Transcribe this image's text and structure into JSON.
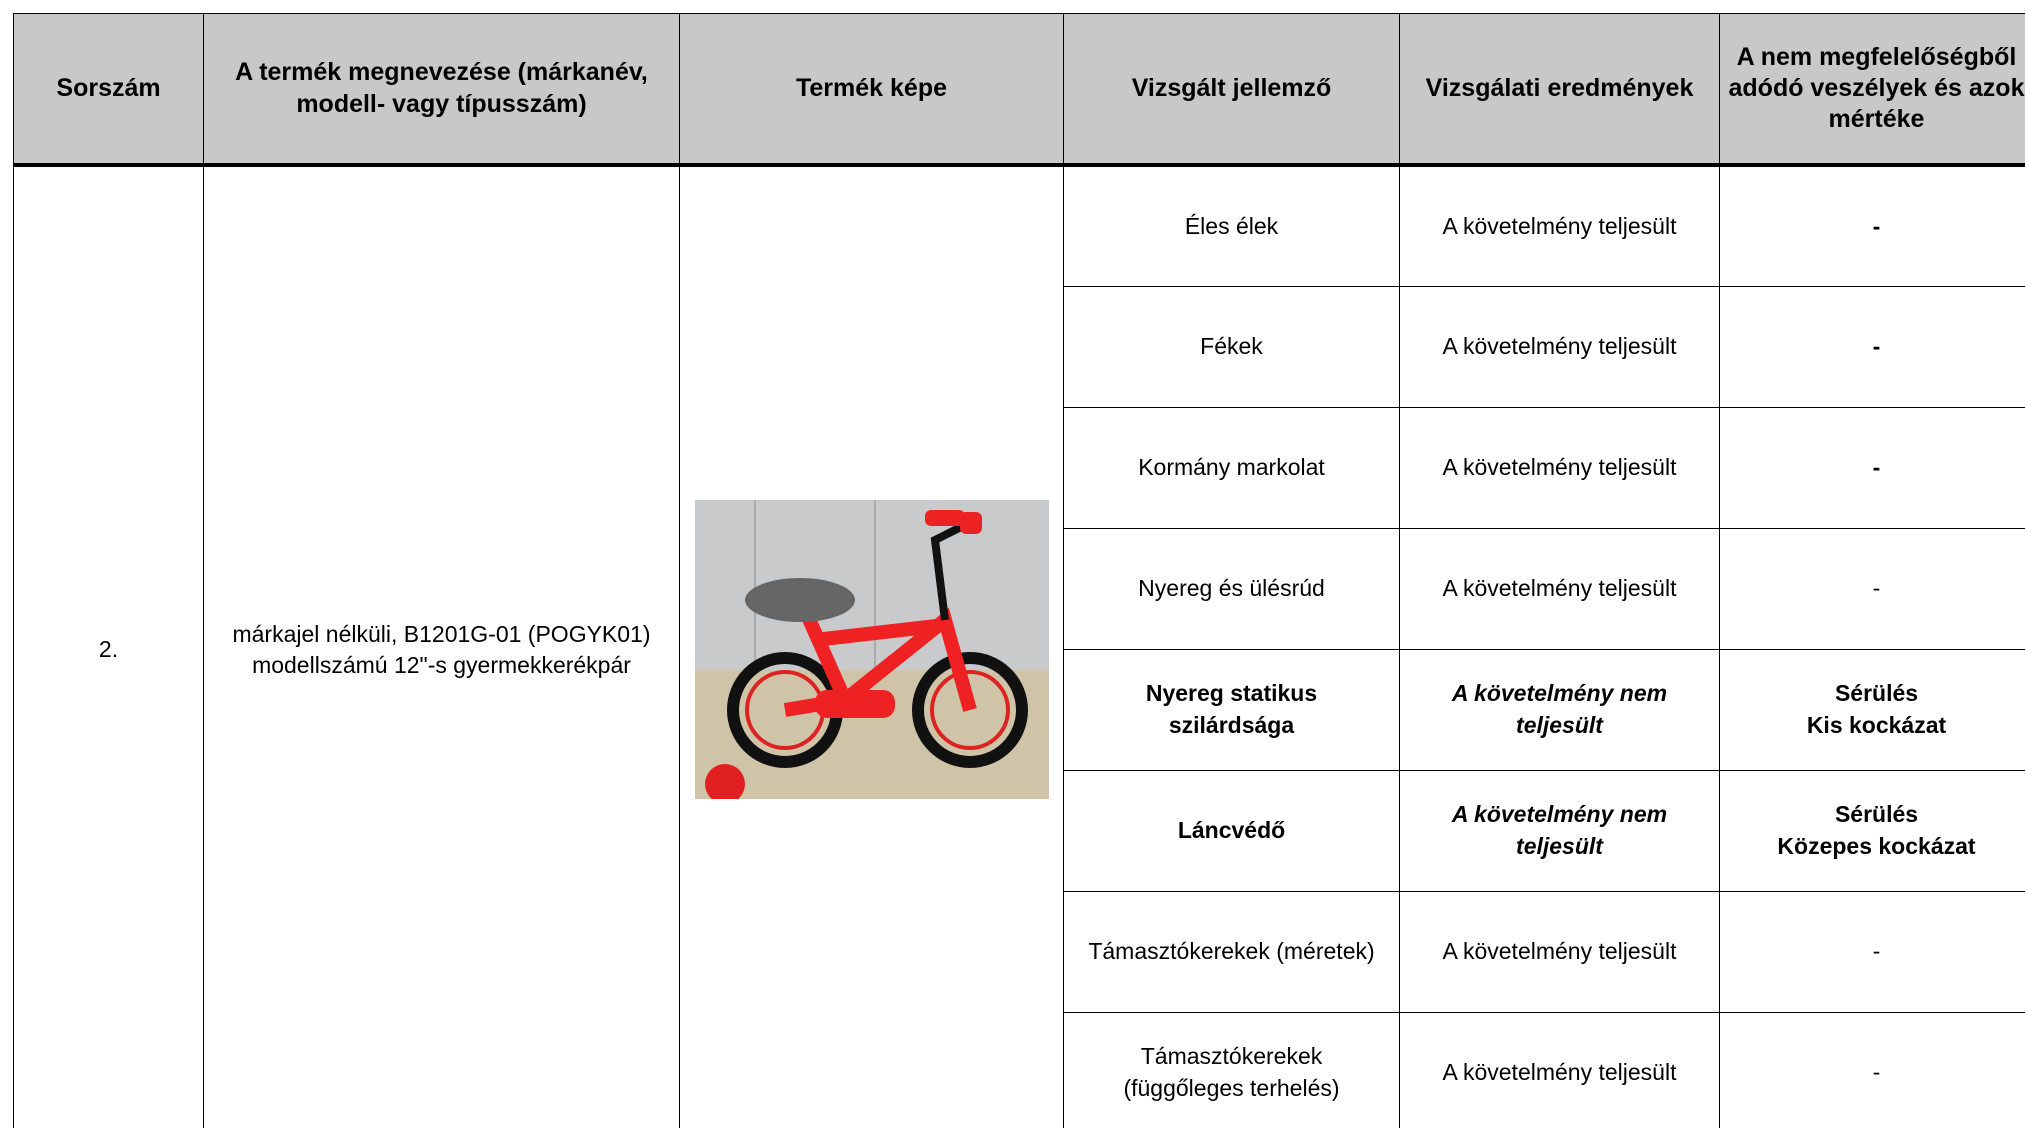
{
  "header": {
    "columns": [
      "Sorszám",
      "A termék megnevezése (márkanév, modell- vagy típusszám)",
      "Termék képe",
      "Vizsgált jellemző",
      "Vizsgálati eredmények",
      "A nem megfelelőségből adódó veszélyek és azok mértéke"
    ]
  },
  "row": {
    "number": "2.",
    "product": "márkajel nélküli, B1201G-01 (POGYK01) modellszámú 12\"-s gyermekkerékpár",
    "tests": [
      {
        "feature": "Éles élek",
        "result": "A követelmény teljesült",
        "hazard": "-"
      },
      {
        "feature": "Fékek",
        "result": "A követelmény teljesült",
        "hazard": "-"
      },
      {
        "feature": "Kormány markolat",
        "result": "A követelmény teljesült",
        "hazard": "-"
      },
      {
        "feature": "Nyereg és ülésrúd",
        "result": "A követelmény teljesült",
        "hazard": "-"
      },
      {
        "feature": "Nyereg statikus szilárdsága",
        "result": "A követelmény nem teljesült",
        "hazard": [
          "Sérülés",
          "Kis kockázat"
        ]
      },
      {
        "feature": "Láncvédő",
        "result": "A követelmény nem teljesült",
        "hazard": [
          "Sérülés",
          "Közepes kockázat"
        ]
      },
      {
        "feature": "Támasztókerekek (méretek)",
        "result": "A követelmény teljesült",
        "hazard": "-"
      },
      {
        "feature": "Támasztókerekek (függőleges terhelés)",
        "result": "A követelmény teljesült",
        "hazard": "-"
      }
    ]
  }
}
